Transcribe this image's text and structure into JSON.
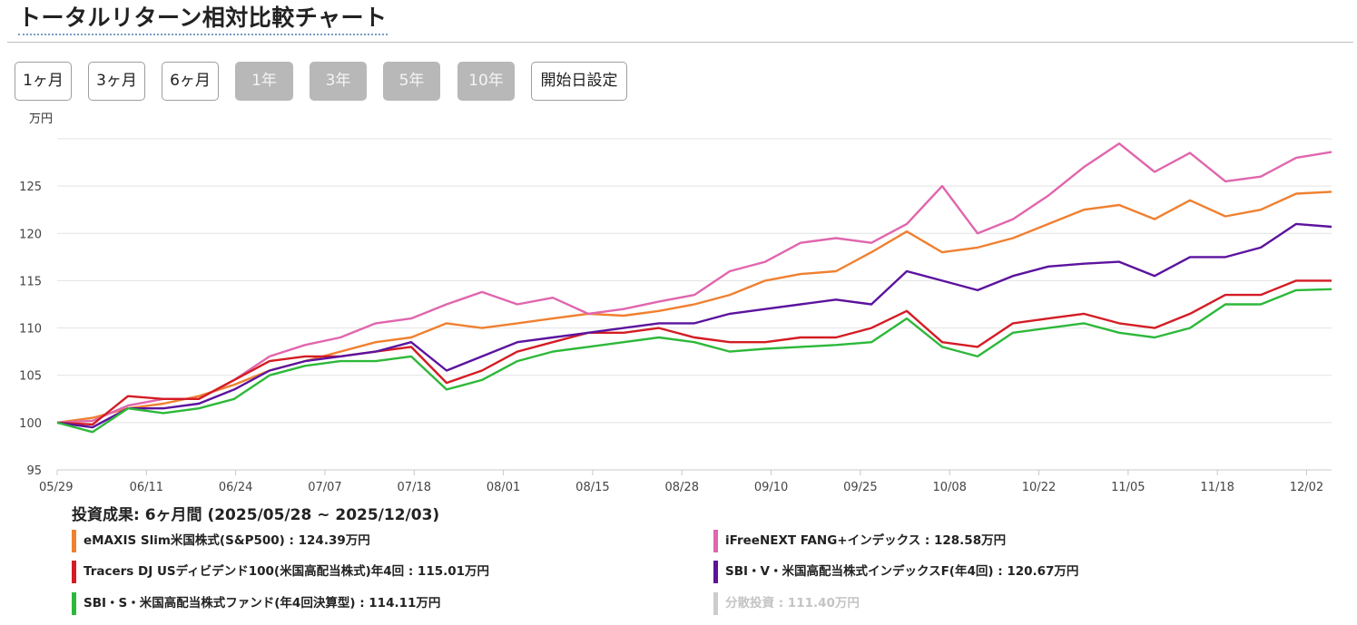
{
  "header": {
    "title": "トータルリターン相対比較チャート"
  },
  "periods": [
    {
      "label": "1ヶ月",
      "active": false
    },
    {
      "label": "3ヶ月",
      "active": false
    },
    {
      "label": "6ヶ月",
      "active": false
    },
    {
      "label": "1年",
      "active": true
    },
    {
      "label": "3年",
      "active": true
    },
    {
      "label": "5年",
      "active": true
    },
    {
      "label": "10年",
      "active": true
    },
    {
      "label": "開始日設定",
      "active": false
    }
  ],
  "chart_data": {
    "type": "line",
    "ylabel": "万円",
    "ylim": [
      95,
      130
    ],
    "yticks": [
      95,
      100,
      105,
      110,
      115,
      120,
      125
    ],
    "xtick_labels": [
      "05/29",
      "06/11",
      "06/24",
      "07/07",
      "07/18",
      "08/01",
      "08/15",
      "08/28",
      "09/10",
      "09/25",
      "10/08",
      "10/22",
      "11/05",
      "11/18",
      "12/02"
    ],
    "grid": true,
    "legend_position": "bottom",
    "series": [
      {
        "name": "eMAXIS Slim米国株式(S&P500)",
        "color": "#f08030",
        "values": [
          100.0,
          100.5,
          101.5,
          102.0,
          102.8,
          104.0,
          105.5,
          106.5,
          107.5,
          108.5,
          109.0,
          110.5,
          110.0,
          110.5,
          111.0,
          111.5,
          111.3,
          111.8,
          112.5,
          113.5,
          115.0,
          115.7,
          116.0,
          118.0,
          120.2,
          118.0,
          118.5,
          119.5,
          121.0,
          122.5,
          123.0,
          121.5,
          123.5,
          121.8,
          122.5,
          124.2,
          124.4
        ]
      },
      {
        "name": "iFreeNEXT FANG+インデックス",
        "color": "#e066ad",
        "values": [
          100.0,
          100.2,
          101.8,
          102.5,
          102.5,
          104.5,
          107.0,
          108.2,
          109.0,
          110.5,
          111.0,
          112.5,
          113.8,
          112.5,
          113.2,
          111.5,
          112.0,
          112.8,
          113.5,
          116.0,
          117.0,
          119.0,
          119.5,
          119.0,
          121.0,
          125.0,
          120.0,
          121.5,
          124.0,
          127.0,
          129.5,
          126.5,
          128.5,
          125.5,
          126.0,
          128.0,
          128.6
        ]
      },
      {
        "name": "Tracers DJ USディビデンド100(米国高配当株式)年4回",
        "color": "#d41c24",
        "values": [
          100.0,
          99.8,
          102.8,
          102.5,
          102.5,
          104.5,
          106.5,
          107.0,
          107.0,
          107.5,
          108.0,
          104.2,
          105.5,
          107.5,
          108.5,
          109.5,
          109.5,
          110.0,
          109.0,
          108.5,
          108.5,
          109.0,
          109.0,
          110.0,
          111.8,
          108.5,
          108.0,
          110.5,
          111.0,
          111.5,
          110.5,
          110.0,
          111.5,
          113.5,
          113.5,
          115.0,
          115.0
        ]
      },
      {
        "name": "SBI・V・米国高配当株式インデックスF(年4回)",
        "color": "#5b139e",
        "values": [
          100.0,
          99.5,
          101.5,
          101.5,
          102.0,
          103.5,
          105.5,
          106.5,
          107.0,
          107.5,
          108.5,
          105.5,
          107.0,
          108.5,
          109.0,
          109.5,
          110.0,
          110.5,
          110.5,
          111.5,
          112.0,
          112.5,
          113.0,
          112.5,
          116.0,
          115.0,
          114.0,
          115.5,
          116.5,
          116.8,
          117.0,
          115.5,
          117.5,
          117.5,
          118.5,
          121.0,
          120.7
        ]
      },
      {
        "name": "SBI・S・米国高配当株式ファンド(年4回決算型)",
        "color": "#2db83a",
        "values": [
          100.0,
          99.0,
          101.5,
          101.0,
          101.5,
          102.5,
          105.0,
          106.0,
          106.5,
          106.5,
          107.0,
          103.5,
          104.5,
          106.5,
          107.5,
          108.0,
          108.5,
          109.0,
          108.5,
          107.5,
          107.8,
          108.0,
          108.2,
          108.5,
          111.0,
          108.0,
          107.0,
          109.5,
          110.0,
          110.5,
          109.5,
          109.0,
          110.0,
          112.5,
          112.5,
          114.0,
          114.1
        ]
      }
    ]
  },
  "results": {
    "title": "投資成果: 6ヶ月間 (2025/05/28 ~ 2025/12/03)",
    "items": [
      {
        "label": "eMAXIS Slim米国株式(S&P500) : 124.39万円",
        "color": "#f08030",
        "active": true
      },
      {
        "label": "iFreeNEXT FANG+インデックス : 128.58万円",
        "color": "#e066ad",
        "active": true
      },
      {
        "label": "Tracers DJ USディビデンド100(米国高配当株式)年4回 : 115.01万円",
        "color": "#d41c24",
        "active": true
      },
      {
        "label": "SBI・V・米国高配当株式インデックスF(年4回) : 120.67万円",
        "color": "#5b139e",
        "active": true
      },
      {
        "label": "SBI・S・米国高配当株式ファンド(年4回決算型) : 114.11万円",
        "color": "#2db83a",
        "active": true
      },
      {
        "label": "分散投資 : 111.40万円",
        "color": "#cccccc",
        "active": false
      }
    ]
  }
}
